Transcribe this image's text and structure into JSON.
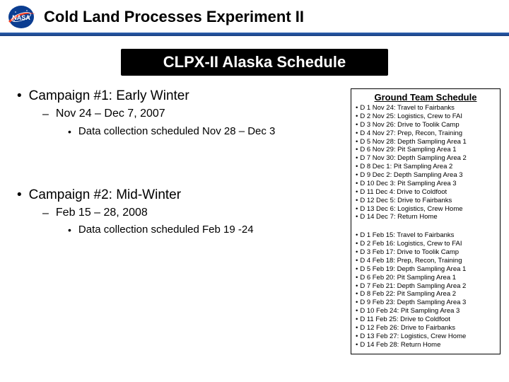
{
  "header": {
    "title": "Cold Land Processes Experiment II"
  },
  "subtitle": "CLPX-II Alaska Schedule",
  "campaigns": [
    {
      "title": "Campaign #1: Early Winter",
      "dates": "Nov 24 – Dec 7, 2007",
      "detail": "Data collection scheduled Nov 28 – Dec 3"
    },
    {
      "title": "Campaign #2: Mid-Winter",
      "dates": "Feb 15 – 28, 2008",
      "detail": "Data collection scheduled Feb 19 -24"
    }
  ],
  "schedule": {
    "title": "Ground Team Schedule",
    "groups": [
      [
        "D 1 Nov 24: Travel to Fairbanks",
        "D 2 Nov 25: Logistics, Crew to FAI",
        "D 3 Nov 26: Drive to Toolik Camp",
        "D 4 Nov 27: Prep, Recon, Training",
        "D 5 Nov 28: Depth Sampling Area 1",
        "D 6 Nov 29: Pit Sampling Area 1",
        "D 7 Nov 30: Depth Sampling Area 2",
        "D 8 Dec 1: Pit Sampling Area 2",
        "D 9 Dec 2: Depth Sampling Area 3",
        "D 10 Dec 3: Pit Sampling Area 3",
        "D 11 Dec 4: Drive to Coldfoot",
        "D 12 Dec 5: Drive to Fairbanks",
        "D 13 Dec 6: Logistics, Crew Home",
        "D 14 Dec 7: Return Home"
      ],
      [
        "D 1 Feb 15: Travel to Fairbanks",
        "D 2 Feb 16: Logistics, Crew to FAI",
        "D 3 Feb 17: Drive to Toolik Camp",
        "D 4 Feb 18: Prep, Recon, Training",
        "D 5 Feb 19: Depth Sampling Area 1",
        "D 6 Feb 20: Pit Sampling Area 1",
        "D 7 Feb 21: Depth Sampling Area 2",
        "D 8 Feb 22: Pit Sampling Area 2",
        "D 9 Feb 23: Depth Sampling Area 3",
        "D 10 Feb 24: Pit Sampling Area 3",
        "D 11 Feb 25: Drive to Coldfoot",
        "D 12 Feb 26: Drive to Fairbanks",
        "D 13 Feb 27: Logistics, Crew Home",
        "D 14 Feb 28: Return Home"
      ]
    ]
  },
  "colors": {
    "rule_top": "#2b5fb0",
    "rule_bottom": "#1a3f80",
    "subtitle_bg": "#000000",
    "subtitle_fg": "#ffffff",
    "text": "#000000",
    "background": "#ffffff",
    "logo_blue": "#0b3d91",
    "logo_red": "#fc3d21"
  }
}
